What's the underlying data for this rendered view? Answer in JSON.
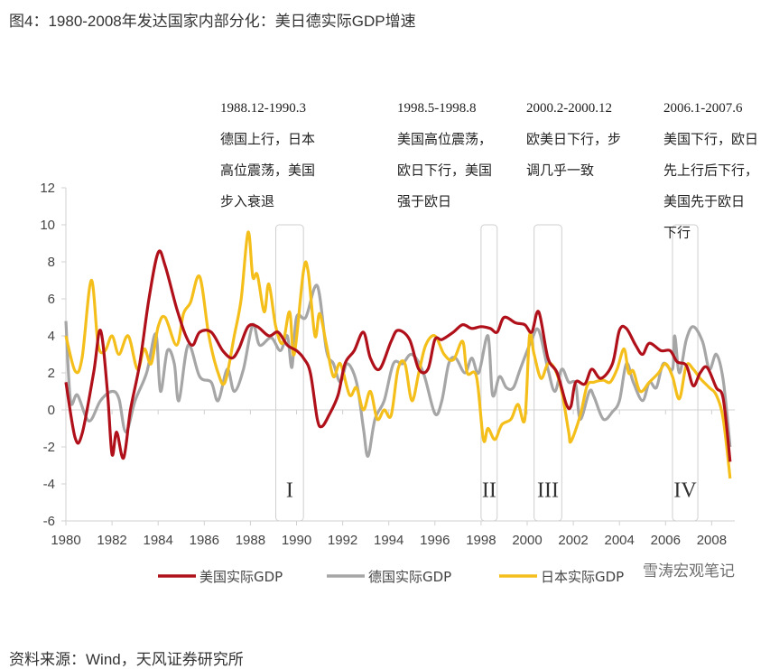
{
  "title": "图4：1980-2008年发达国家内部分化：美日德实际GDP增速",
  "source": "资料来源：Wind，天风证券研究所",
  "watermark": "雪涛宏观笔记",
  "chart_data": {
    "type": "line",
    "title": "图4：1980-2008年发达国家内部分化：美日德实际GDP增速",
    "xlabel": "",
    "ylabel": "",
    "xlim": [
      1980,
      2009
    ],
    "ylim": [
      -6,
      12
    ],
    "xticks": [
      1980,
      1982,
      1984,
      1986,
      1988,
      1990,
      1992,
      1994,
      1996,
      1998,
      2000,
      2002,
      2004,
      2006,
      2008
    ],
    "yticks": [
      -6,
      -4,
      -2,
      0,
      2,
      4,
      6,
      8,
      10,
      12
    ],
    "grid": false,
    "legend_position": "bottom",
    "series": [
      {
        "name": "美国实际GDP",
        "color": "#b0101a",
        "points": [
          [
            1980.0,
            1.5
          ],
          [
            1980.4,
            -1.5
          ],
          [
            1980.7,
            -1.3
          ],
          [
            1981.2,
            2
          ],
          [
            1981.5,
            4.3
          ],
          [
            1981.8,
            1
          ],
          [
            1982.0,
            -2.4
          ],
          [
            1982.2,
            -1.2
          ],
          [
            1982.5,
            -2.6
          ],
          [
            1982.8,
            0
          ],
          [
            1983.2,
            2.5
          ],
          [
            1983.6,
            6
          ],
          [
            1984.0,
            8.5
          ],
          [
            1984.3,
            7.8
          ],
          [
            1984.8,
            5.5
          ],
          [
            1985.2,
            4
          ],
          [
            1985.5,
            3.5
          ],
          [
            1985.8,
            4.2
          ],
          [
            1986.3,
            4.2
          ],
          [
            1986.8,
            3.2
          ],
          [
            1987.2,
            2.8
          ],
          [
            1987.5,
            3.3
          ],
          [
            1987.9,
            4.5
          ],
          [
            1988.3,
            4.5
          ],
          [
            1988.8,
            4
          ],
          [
            1989.2,
            4.2
          ],
          [
            1989.6,
            3.5
          ],
          [
            1990.0,
            3.2
          ],
          [
            1990.3,
            2.8
          ],
          [
            1990.6,
            2
          ],
          [
            1990.9,
            -0.5
          ],
          [
            1991.1,
            -0.9
          ],
          [
            1991.4,
            -0.3
          ],
          [
            1991.8,
            0.8
          ],
          [
            1992.1,
            2.5
          ],
          [
            1992.5,
            3.2
          ],
          [
            1992.9,
            4.2
          ],
          [
            1993.2,
            2.8
          ],
          [
            1993.6,
            2.2
          ],
          [
            1994.1,
            3.7
          ],
          [
            1994.4,
            4.3
          ],
          [
            1994.9,
            3.8
          ],
          [
            1995.3,
            2.2
          ],
          [
            1995.7,
            2.2
          ],
          [
            1996.0,
            3.8
          ],
          [
            1996.3,
            3.8
          ],
          [
            1996.8,
            4.2
          ],
          [
            1997.2,
            4.6
          ],
          [
            1997.6,
            4.4
          ],
          [
            1998.0,
            4.5
          ],
          [
            1998.4,
            4.4
          ],
          [
            1998.7,
            4.2
          ],
          [
            1999.0,
            5
          ],
          [
            1999.5,
            4.7
          ],
          [
            1999.9,
            4.6
          ],
          [
            2000.2,
            4.2
          ],
          [
            2000.5,
            5.3
          ],
          [
            2000.9,
            2.8
          ],
          [
            2001.3,
            2
          ],
          [
            2001.7,
            0.3
          ],
          [
            2001.9,
            0.2
          ],
          [
            2002.1,
            1.5
          ],
          [
            2002.5,
            1.4
          ],
          [
            2002.8,
            2.2
          ],
          [
            2003.2,
            1.7
          ],
          [
            2003.7,
            2.5
          ],
          [
            2004.0,
            4.3
          ],
          [
            2004.3,
            4.4
          ],
          [
            2004.7,
            3.5
          ],
          [
            2005.0,
            3
          ],
          [
            2005.3,
            3.6
          ],
          [
            2005.8,
            3.2
          ],
          [
            2006.2,
            3.2
          ],
          [
            2006.5,
            2.6
          ],
          [
            2006.9,
            2.4
          ],
          [
            2007.2,
            1.3
          ],
          [
            2007.5,
            2
          ],
          [
            2007.8,
            2.3
          ],
          [
            2008.2,
            1.2
          ],
          [
            2008.5,
            0.6
          ],
          [
            2008.8,
            -2.8
          ]
        ]
      },
      {
        "name": "德国实际GDP",
        "color": "#a6a6a6",
        "points": [
          [
            1980.0,
            4.8
          ],
          [
            1980.2,
            0.5
          ],
          [
            1980.5,
            0.8
          ],
          [
            1981.0,
            -0.6
          ],
          [
            1981.5,
            0.5
          ],
          [
            1982.0,
            1
          ],
          [
            1982.3,
            0.6
          ],
          [
            1982.6,
            -1.2
          ],
          [
            1983.0,
            0.5
          ],
          [
            1983.5,
            2
          ],
          [
            1983.9,
            4.1
          ],
          [
            1984.1,
            1
          ],
          [
            1984.4,
            3.2
          ],
          [
            1984.7,
            2.5
          ],
          [
            1984.9,
            0.5
          ],
          [
            1985.3,
            3.5
          ],
          [
            1985.8,
            1.8
          ],
          [
            1986.3,
            1.5
          ],
          [
            1986.6,
            0.5
          ],
          [
            1987.0,
            2.2
          ],
          [
            1987.3,
            1
          ],
          [
            1987.7,
            2.2
          ],
          [
            1988.1,
            4.6
          ],
          [
            1988.4,
            3.5
          ],
          [
            1988.9,
            3.9
          ],
          [
            1989.3,
            3.2
          ],
          [
            1989.6,
            4
          ],
          [
            1989.8,
            2.3
          ],
          [
            1990.0,
            5
          ],
          [
            1990.4,
            5
          ],
          [
            1990.9,
            6.7
          ],
          [
            1991.3,
            3.2
          ],
          [
            1991.6,
            2.5
          ],
          [
            1991.9,
            1.5
          ],
          [
            1992.2,
            2.5
          ],
          [
            1992.6,
            1.5
          ],
          [
            1992.9,
            -1
          ],
          [
            1993.1,
            -2.5
          ],
          [
            1993.4,
            -0.5
          ],
          [
            1993.8,
            0.5
          ],
          [
            1994.2,
            2.5
          ],
          [
            1994.6,
            2.5
          ],
          [
            1995.0,
            3
          ],
          [
            1995.5,
            2
          ],
          [
            1996.0,
            -0.2
          ],
          [
            1996.3,
            0.5
          ],
          [
            1996.6,
            2.5
          ],
          [
            1996.9,
            2.8
          ],
          [
            1997.3,
            2
          ],
          [
            1997.6,
            2.8
          ],
          [
            1997.9,
            2
          ],
          [
            1998.3,
            4
          ],
          [
            1998.5,
            0.8
          ],
          [
            1998.8,
            1.8
          ],
          [
            1999.1,
            1.2
          ],
          [
            1999.4,
            1.2
          ],
          [
            1999.7,
            2.2
          ],
          [
            2000.2,
            3.8
          ],
          [
            2000.5,
            4.3
          ],
          [
            2000.9,
            2.2
          ],
          [
            2001.2,
            1
          ],
          [
            2001.5,
            2.2
          ],
          [
            2001.8,
            1.5
          ],
          [
            2002.1,
            1.4
          ],
          [
            2002.3,
            -0.5
          ],
          [
            2002.7,
            1
          ],
          [
            2002.9,
            0.7
          ],
          [
            2003.3,
            -0.5
          ],
          [
            2003.7,
            -0.1
          ],
          [
            2004.0,
            0.5
          ],
          [
            2004.3,
            2.5
          ],
          [
            2004.6,
            1.5
          ],
          [
            2005.0,
            0.5
          ],
          [
            2005.3,
            1.5
          ],
          [
            2005.6,
            1.2
          ],
          [
            2005.9,
            2.5
          ],
          [
            2006.3,
            2.2
          ],
          [
            2006.4,
            4
          ],
          [
            2006.6,
            2
          ],
          [
            2006.9,
            3.8
          ],
          [
            2007.2,
            4.5
          ],
          [
            2007.6,
            3.7
          ],
          [
            2007.9,
            2.2
          ],
          [
            2008.2,
            3
          ],
          [
            2008.5,
            1.6
          ],
          [
            2008.8,
            -2
          ]
        ]
      },
      {
        "name": "日本实际GDP",
        "color": "#f5bf1b",
        "points": [
          [
            1980.0,
            4
          ],
          [
            1980.4,
            2.1
          ],
          [
            1980.7,
            2.8
          ],
          [
            1981.1,
            7
          ],
          [
            1981.4,
            3.5
          ],
          [
            1981.7,
            3.2
          ],
          [
            1982.0,
            4
          ],
          [
            1982.3,
            3
          ],
          [
            1982.7,
            4
          ],
          [
            1983.1,
            2.2
          ],
          [
            1983.4,
            3.3
          ],
          [
            1983.7,
            2.5
          ],
          [
            1984.0,
            4.5
          ],
          [
            1984.3,
            5
          ],
          [
            1984.8,
            3.5
          ],
          [
            1985.1,
            5.2
          ],
          [
            1985.4,
            5.8
          ],
          [
            1985.8,
            7.2
          ],
          [
            1986.2,
            4
          ],
          [
            1986.6,
            2
          ],
          [
            1986.9,
            1.5
          ],
          [
            1987.3,
            4
          ],
          [
            1987.6,
            6
          ],
          [
            1987.9,
            9.6
          ],
          [
            1988.1,
            7.2
          ],
          [
            1988.3,
            7.3
          ],
          [
            1988.6,
            5.3
          ],
          [
            1988.8,
            6.8
          ],
          [
            1989.1,
            4.5
          ],
          [
            1989.4,
            3.6
          ],
          [
            1989.7,
            5.3
          ],
          [
            1989.9,
            3
          ],
          [
            1990.3,
            7.5
          ],
          [
            1990.5,
            7.5
          ],
          [
            1990.8,
            4
          ],
          [
            1991.0,
            5.2
          ],
          [
            1991.3,
            3.5
          ],
          [
            1991.6,
            1.8
          ],
          [
            1991.9,
            2.5
          ],
          [
            1992.3,
            0.8
          ],
          [
            1992.6,
            1.2
          ],
          [
            1992.9,
            0
          ],
          [
            1993.2,
            1
          ],
          [
            1993.5,
            -0.5
          ],
          [
            1993.8,
            0
          ],
          [
            1994.1,
            -0.3
          ],
          [
            1994.4,
            2.2
          ],
          [
            1994.7,
            2.5
          ],
          [
            1995.0,
            0.5
          ],
          [
            1995.3,
            2
          ],
          [
            1995.6,
            3.5
          ],
          [
            1996.0,
            4
          ],
          [
            1996.4,
            3
          ],
          [
            1996.8,
            2.7
          ],
          [
            1997.2,
            3.7
          ],
          [
            1997.4,
            2
          ],
          [
            1997.8,
            1.8
          ],
          [
            1998.1,
            -1.6
          ],
          [
            1998.3,
            -1
          ],
          [
            1998.6,
            -1.6
          ],
          [
            1998.9,
            -0.8
          ],
          [
            1999.3,
            -0.5
          ],
          [
            1999.6,
            0.3
          ],
          [
            1999.9,
            -0.5
          ],
          [
            2000.1,
            4
          ],
          [
            2000.3,
            3
          ],
          [
            2000.6,
            1.7
          ],
          [
            2000.9,
            2.5
          ],
          [
            2001.2,
            2.2
          ],
          [
            2001.5,
            1
          ],
          [
            2001.8,
            -1.2
          ],
          [
            2001.9,
            -1.7
          ],
          [
            2002.3,
            -0.3
          ],
          [
            2002.6,
            1.3
          ],
          [
            2002.9,
            1.5
          ],
          [
            2003.3,
            1.6
          ],
          [
            2003.6,
            1.5
          ],
          [
            2003.9,
            2.2
          ],
          [
            2004.2,
            3.3
          ],
          [
            2004.4,
            2
          ],
          [
            2004.6,
            2.1
          ],
          [
            2004.9,
            1
          ],
          [
            2005.3,
            1.5
          ],
          [
            2005.7,
            2
          ],
          [
            2006.0,
            2.5
          ],
          [
            2006.3,
            1.8
          ],
          [
            2006.6,
            0.6
          ],
          [
            2006.9,
            2.4
          ],
          [
            2007.2,
            2.2
          ],
          [
            2007.5,
            1.7
          ],
          [
            2007.9,
            1.2
          ],
          [
            2008.2,
            0.8
          ],
          [
            2008.5,
            -0.5
          ],
          [
            2008.8,
            -3.7
          ]
        ]
      }
    ],
    "periods": [
      {
        "label": "I",
        "range": [
          1989.1,
          1990.3
        ],
        "period": "1988.12-1990.3",
        "text": [
          "德国上行，日本",
          "高位震荡，美国",
          "步入衰退"
        ]
      },
      {
        "label": "II",
        "range": [
          1998.0,
          1998.7
        ],
        "period": "1998.5-1998.8",
        "text": [
          "美国高位震荡，",
          "欧日下行，美国",
          "强于欧日"
        ]
      },
      {
        "label": "III",
        "range": [
          2000.3,
          2001.5
        ],
        "period": "2000.2-2000.12",
        "text": [
          "欧美日下行，步",
          "调几乎一致"
        ]
      },
      {
        "label": "IV",
        "range": [
          2006.3,
          2007.4
        ],
        "period": "2006.1-2007.6",
        "text": [
          "美国下行，欧日",
          "先上行后下行，",
          "美国先于欧日",
          "下行"
        ]
      }
    ]
  }
}
